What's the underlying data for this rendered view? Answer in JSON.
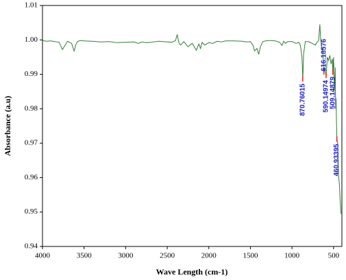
{
  "chart_data": {
    "type": "line",
    "xlabel": "Wave Length (cm-1)",
    "ylabel": "Absorbance (a.u)",
    "xlim": [
      4000,
      400
    ],
    "xticks": [
      4000,
      3500,
      3000,
      2500,
      2000,
      1500,
      1000,
      500
    ],
    "ylim": [
      0.94,
      1.01
    ],
    "yticks": [
      0.94,
      0.95,
      0.96,
      0.97,
      0.98,
      0.99,
      {
        "value": 1.0,
        "label": "1.00"
      },
      1.01
    ],
    "grid": false,
    "series": [
      {
        "color": "#2f7d32",
        "x": [
          4000,
          3950,
          3900,
          3850,
          3800,
          3760,
          3740,
          3700,
          3650,
          3620,
          3600,
          3580,
          3550,
          3500,
          3400,
          3300,
          3200,
          3100,
          3000,
          2900,
          2850,
          2800,
          2750,
          2700,
          2600,
          2500,
          2450,
          2400,
          2380,
          2360,
          2340,
          2300,
          2250,
          2200,
          2150,
          2120,
          2100,
          2080,
          2050,
          2000,
          1950,
          1900,
          1850,
          1800,
          1700,
          1600,
          1550,
          1500,
          1470,
          1450,
          1420,
          1400,
          1380,
          1350,
          1300,
          1250,
          1200,
          1150,
          1120,
          1100,
          1080,
          1050,
          1000,
          950,
          920,
          900,
          880,
          870,
          860,
          840,
          800,
          760,
          720,
          700,
          680,
          665,
          655,
          645,
          630,
          616,
          605,
          590,
          575,
          560,
          545,
          530,
          515,
          509,
          500,
          490,
          480,
          475,
          470,
          465,
          460,
          450,
          440,
          430,
          420,
          410
        ],
        "values": [
          0.9998,
          0.9996,
          0.9997,
          0.9995,
          0.9993,
          0.9972,
          0.998,
          0.9996,
          0.999,
          0.9968,
          0.9985,
          0.9995,
          0.9998,
          0.9997,
          0.9996,
          0.9994,
          0.9995,
          0.9992,
          0.9993,
          0.9994,
          0.999,
          0.9994,
          0.9992,
          0.9993,
          0.9996,
          0.9994,
          0.9993,
          0.9998,
          1.0016,
          0.9992,
          0.9985,
          0.9995,
          0.998,
          0.999,
          0.997,
          0.9988,
          0.9975,
          0.9993,
          0.9985,
          0.9992,
          0.999,
          0.9996,
          0.9994,
          0.9997,
          0.9997,
          0.9996,
          0.9994,
          0.9995,
          0.9985,
          0.9968,
          0.9975,
          0.9958,
          0.998,
          0.9995,
          0.9998,
          0.9998,
          0.9997,
          0.9993,
          0.9984,
          0.9996,
          0.999,
          0.9995,
          0.9995,
          0.999,
          0.9993,
          0.9985,
          0.995,
          0.9885,
          0.996,
          0.9995,
          0.9995,
          0.999,
          0.9985,
          0.9993,
          0.9998,
          1.0045,
          1,
          0.9985,
          0.997,
          0.9905,
          0.992,
          0.9895,
          0.995,
          0.994,
          0.9955,
          0.993,
          0.9945,
          0.9905,
          0.995,
          0.985,
          0.992,
          0.98,
          0.983,
          0.976,
          0.971,
          0.97,
          0.9605,
          0.958,
          0.953,
          0.9495
        ]
      }
    ],
    "peaks": [
      {
        "x": 870.76015,
        "y": 0.9885
      },
      {
        "x": 616.18576,
        "y": 0.9905
      },
      {
        "x": 590.14974,
        "y": 0.9895
      },
      {
        "x": 509.14879,
        "y": 0.9905
      },
      {
        "x": 460.93395,
        "y": 0.971
      }
    ]
  }
}
